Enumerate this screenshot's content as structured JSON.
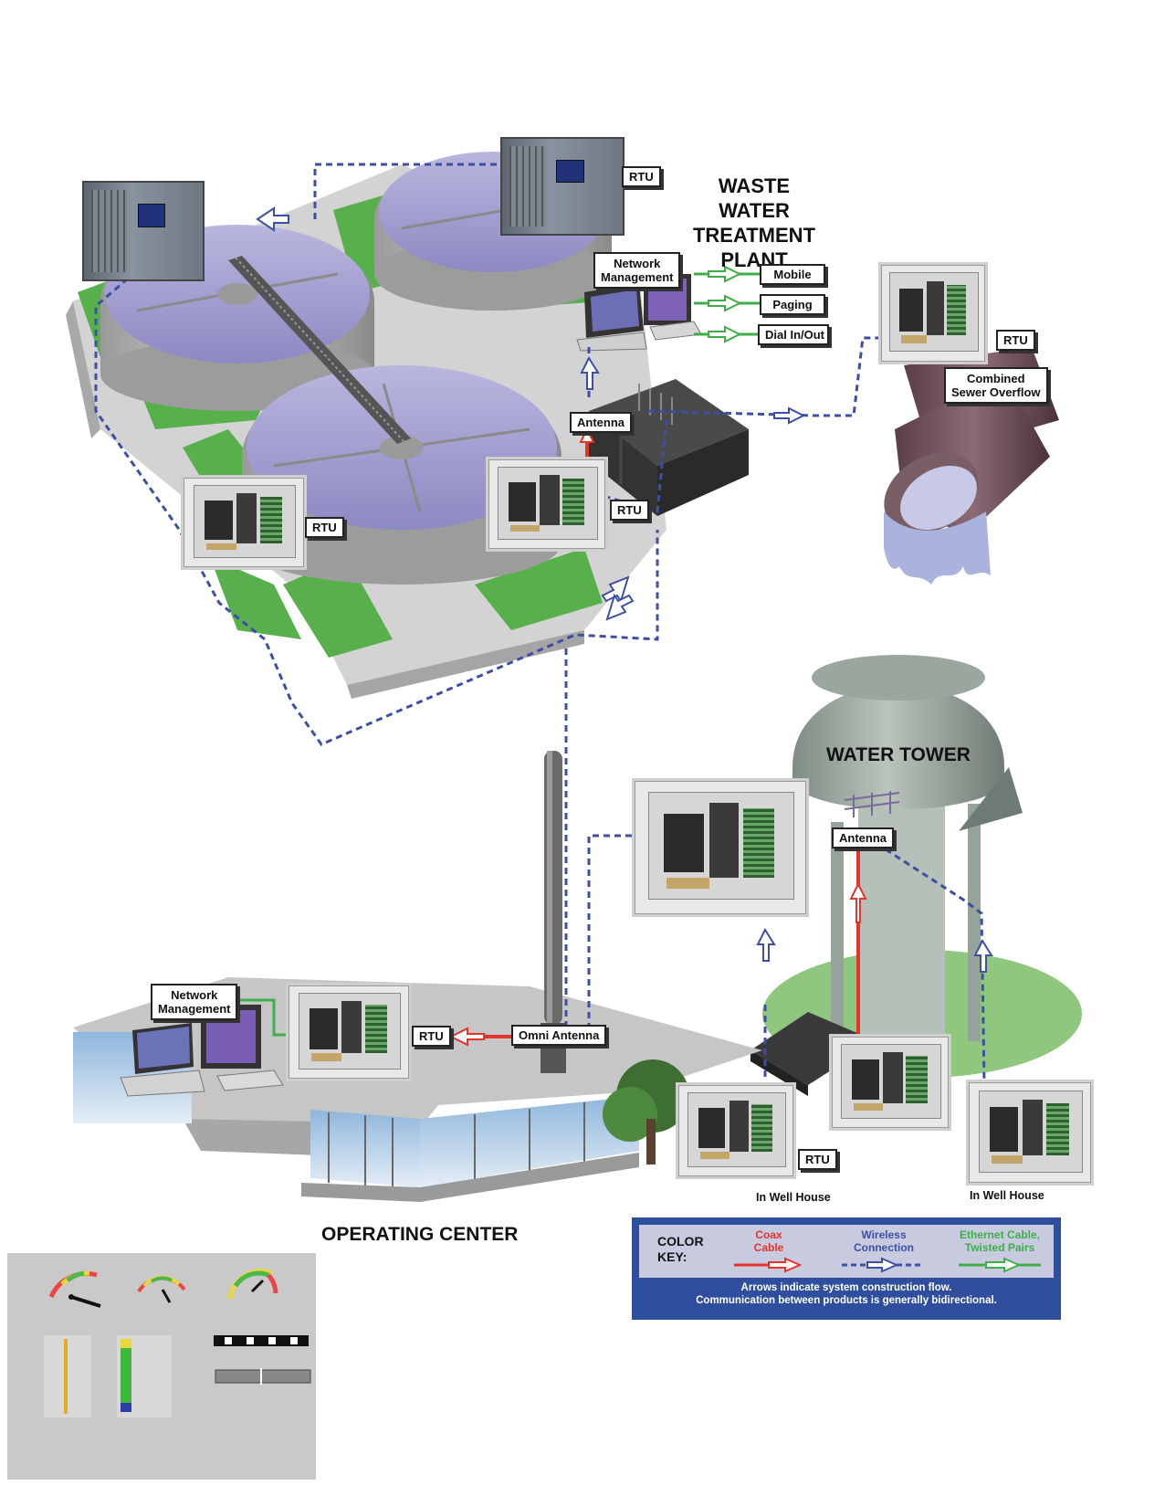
{
  "title": {
    "plant": "WASTE\nWATER TREATMENT\nPLANT",
    "tower": "WATER TOWER",
    "operating": "OPERATING CENTER"
  },
  "labels": {
    "rtu": "RTU",
    "network_management": "Network\nManagement",
    "mobile": "Mobile",
    "paging": "Paging",
    "dial": "Dial In/Out",
    "antenna": "Antenna",
    "combined": "Combined\nSewer Overflow",
    "omni": "Omni Antenna",
    "well_house": "In Well House"
  },
  "color_key": {
    "heading": "COLOR\nKEY:",
    "coax": "Coax\nCable",
    "wireless": "Wireless\nConnection",
    "ethernet": "Ethernet Cable,\nTwisted Pairs",
    "footnote_1": "Arrows indicate system construction flow.",
    "footnote_2": "Communication between products is generally bidirectional.",
    "colors": {
      "coax": "#e5332a",
      "wireless": "#3e4fa3",
      "ethernet": "#3fae49"
    }
  }
}
